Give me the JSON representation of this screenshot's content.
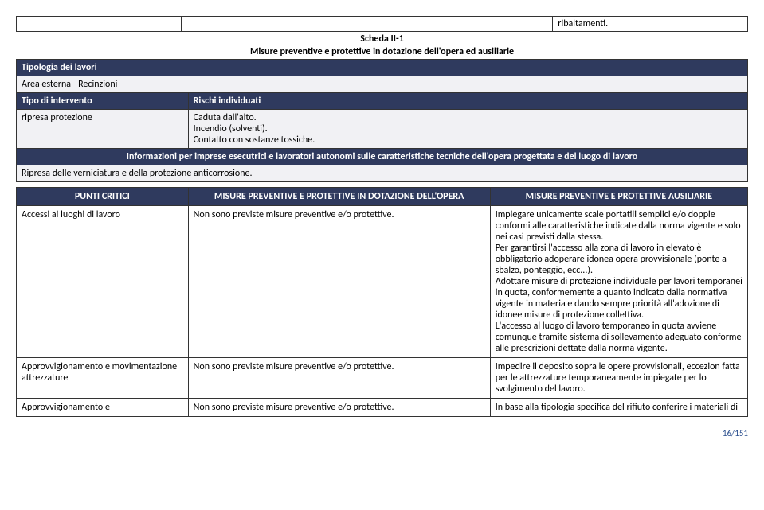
{
  "top": {
    "ribal": "ribaltamenti."
  },
  "sheet": {
    "title": "Scheda II-1",
    "subtitle": "Misure preventive e protettive in dotazione dell'opera ed ausiliarie"
  },
  "rows": {
    "tipologia_header": "Tipologia dei lavori",
    "area_esterna": "Area esterna - Recinzioni",
    "tipo_intervento": "Tipo di intervento",
    "rischi_individuati": "Rischi individuati",
    "ripresa_protezione": "ripresa protezione",
    "rischi_text": "Caduta dall'alto.\nIncendio (solventi).\nContatto con sostanze tossiche.",
    "info_imprese": "Informazioni per imprese esecutrici e lavoratori autonomi sulle caratteristiche tecniche dell'opera progettata e del luogo di lavoro",
    "ripresa_verniciatura": "Ripresa delle verniciatura e della protezione anticorrosione."
  },
  "punti": {
    "h1": "PUNTI CRITICI",
    "h2": "MISURE PREVENTIVE E PROTETTIVE IN DOTAZIONE DELL'OPERA",
    "h3": "MISURE PREVENTIVE E PROTETTIVE AUSILIARIE",
    "r1c1": "Accessi ai luoghi di lavoro",
    "r1c2": "Non sono previste misure preventive e/o protettive.",
    "r1c3": "Impiegare unicamente scale portatili semplici e/o doppie conformi alle caratteristiche indicate dalla norma vigente e solo nei casi previsti dalla stessa.\nPer garantirsi l'accesso alla zona di lavoro in elevato è obbligatorio adoperare idonea opera provvisionale (ponte a sbalzo, ponteggio, ecc...).\nAdottare misure di protezione individuale per lavori temporanei in quota, conformemente a quanto indicato dalla normativa vigente in materia e dando sempre priorità all'adozione di idonee misure di protezione collettiva.\nL'accesso al luogo di lavoro temporaneo in quota avviene comunque tramite sistema di sollevamento adeguato conforme alle prescrizioni dettate dalla norma vigente.",
    "r2c1": "Approvvigionamento e movimentazione attrezzature",
    "r2c2": "Non sono previste misure preventive e/o protettive.",
    "r2c3": "Impedire il deposito sopra le opere provvisionali, eccezion fatta per le attrezzature temporaneamente impiegate per lo svolgimento del lavoro.",
    "r3c1": "Approvvigionamento e",
    "r3c2": "Non sono previste misure preventive e/o protettive.",
    "r3c3": "In base alla tipologia specifica del rifiuto conferire i materiali di"
  },
  "page": "16/151"
}
